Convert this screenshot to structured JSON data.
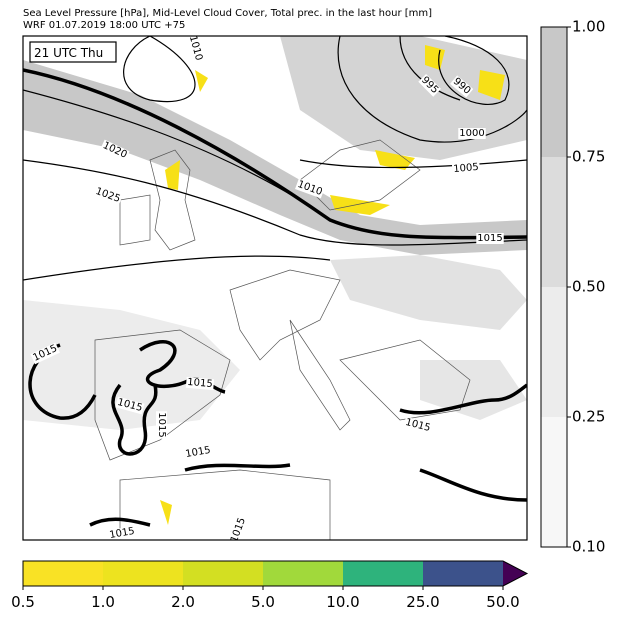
{
  "header": {
    "title_line1": "Sea Level Pressure [hPa], Mid-Level Cloud Cover, Total prec. in the last hour [mm]",
    "title_line2": "WRF 01.07.2019 18:00 UTC +75"
  },
  "map": {
    "time_label": "21 UTC Thu",
    "isobar_labels": [
      "1010",
      "995",
      "990",
      "1000",
      "1005",
      "1020",
      "1025",
      "1010",
      "1015",
      "1015",
      "1015",
      "1015",
      "1015",
      "1015",
      "1015",
      "1015",
      "1015"
    ]
  },
  "cloud_colorbar": {
    "ticks": [
      "1.00",
      "0.75",
      "0.50",
      "0.25",
      "0.10"
    ]
  },
  "precip_colorbar": {
    "ticks": [
      "0.5",
      "1.0",
      "2.0",
      "5.0",
      "10.0",
      "25.0",
      "50.0"
    ]
  }
}
